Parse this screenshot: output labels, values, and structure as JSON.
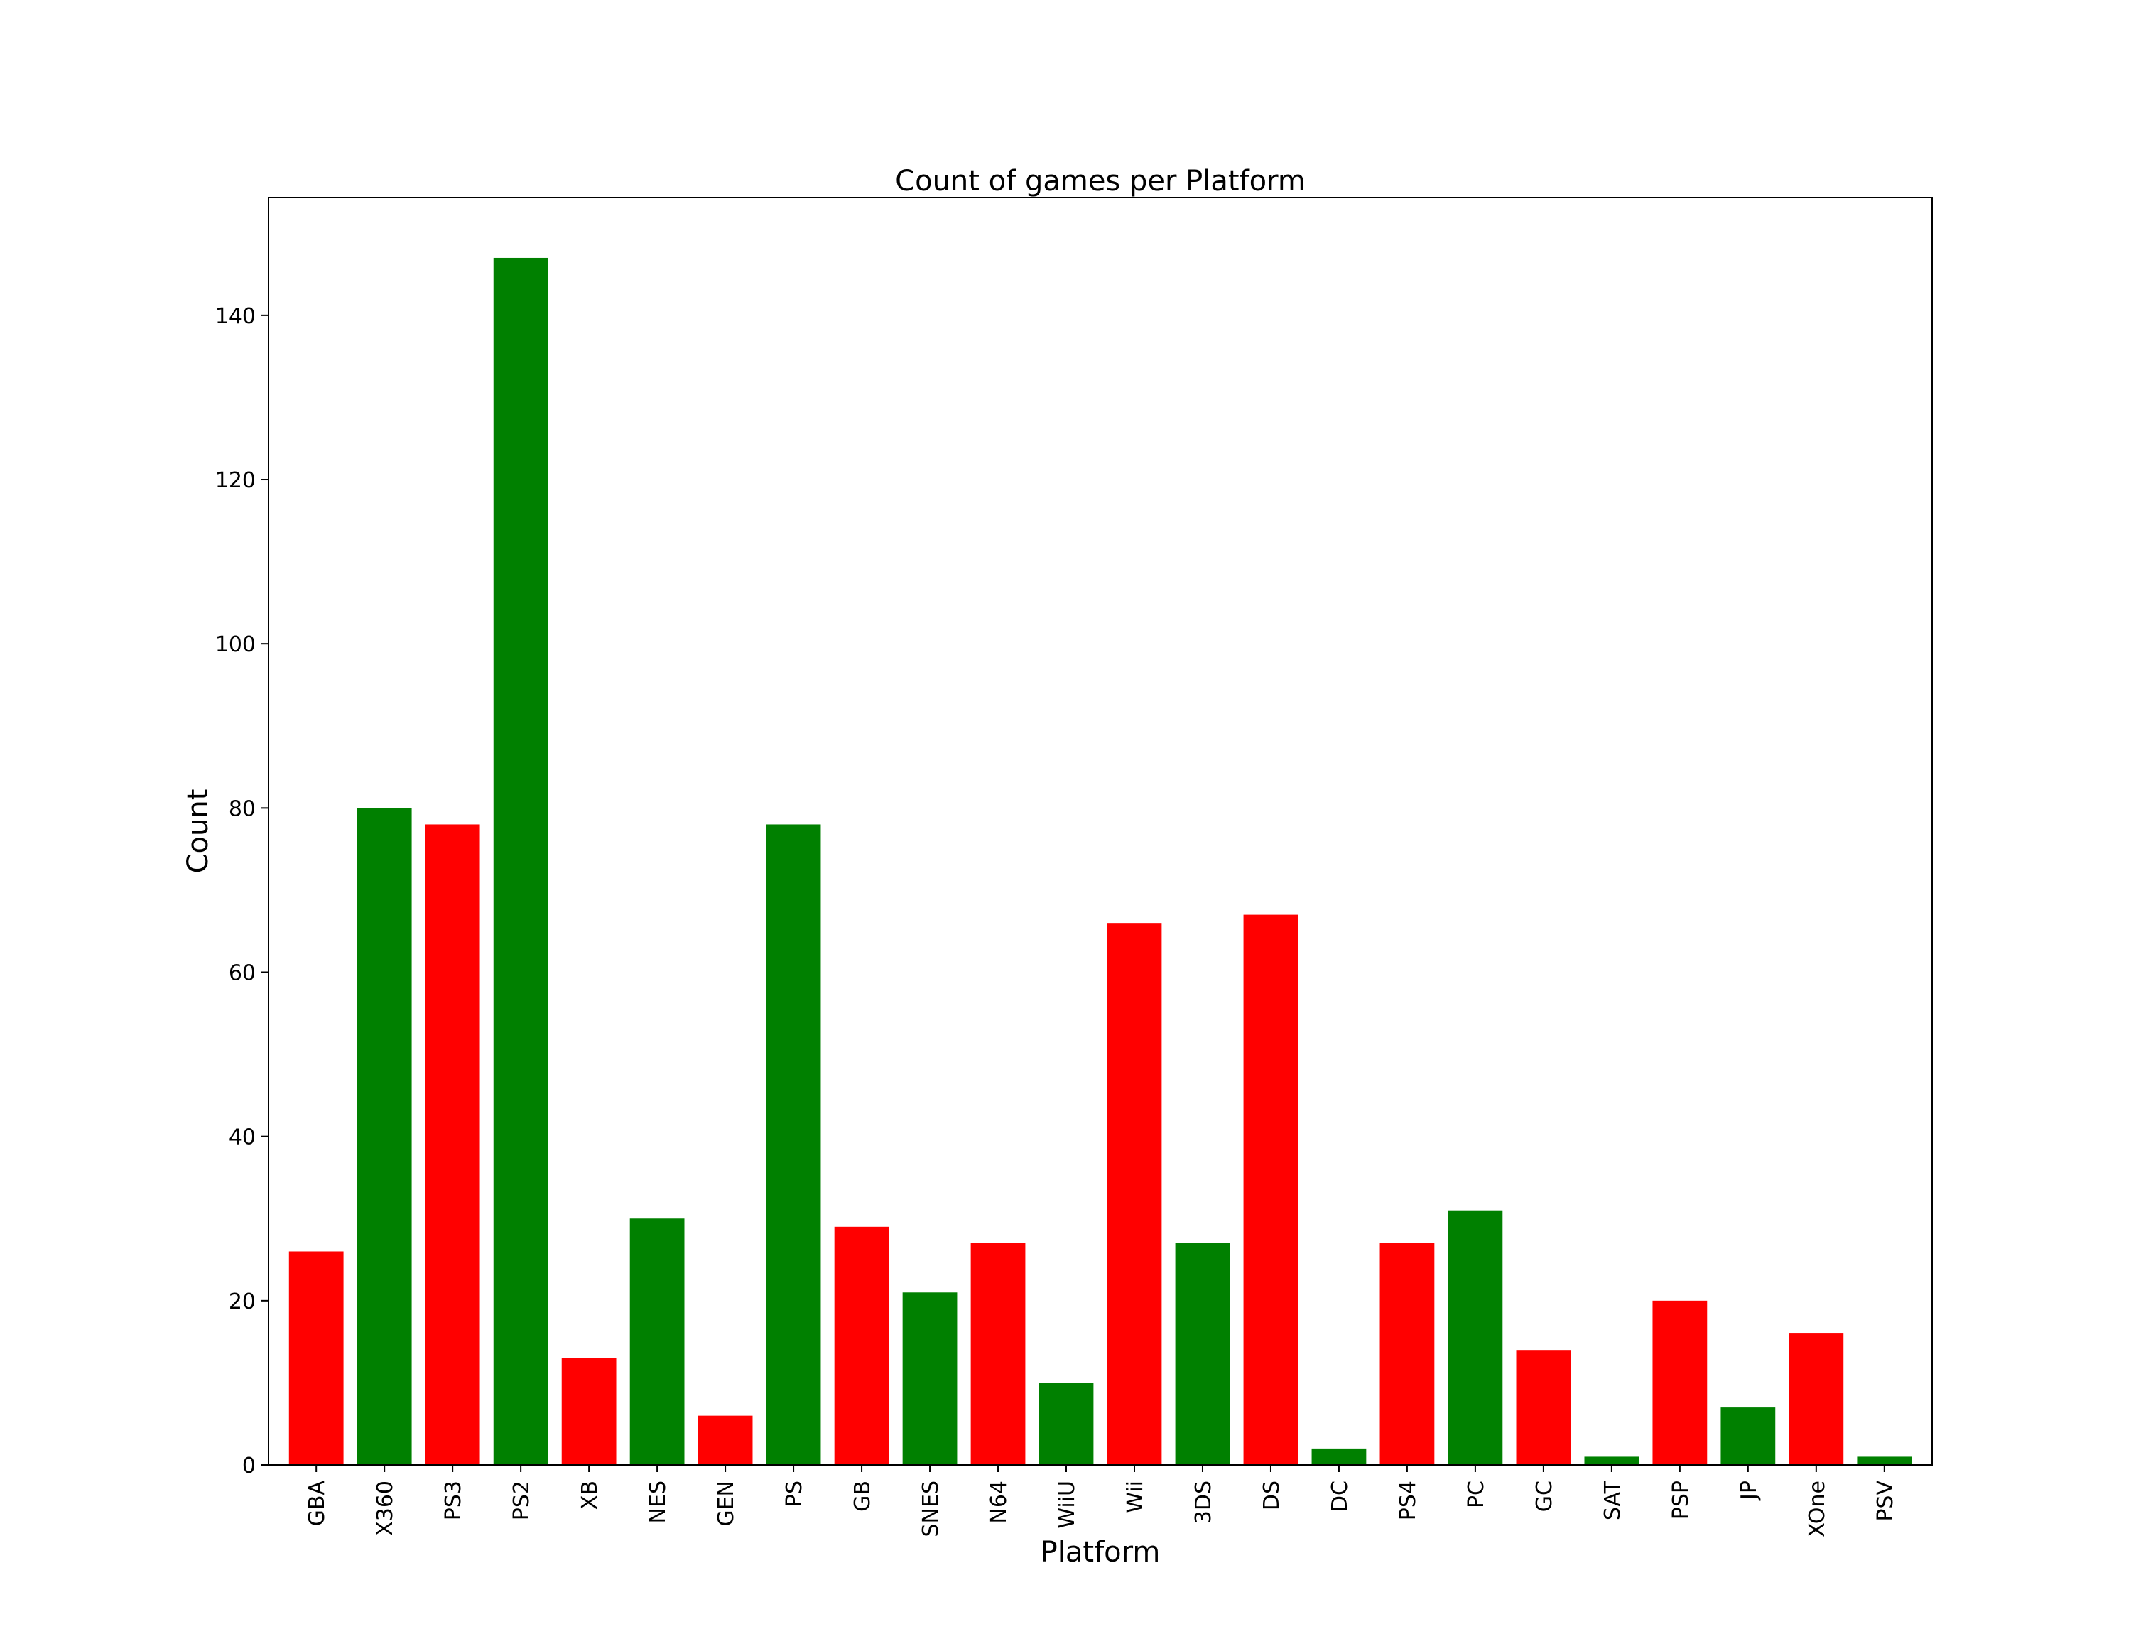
{
  "chart_data": {
    "type": "bar",
    "title": "Count of games per Platform",
    "xlabel": "Platform",
    "ylabel": "Count",
    "categories": [
      "GBA",
      "X360",
      "PS3",
      "PS2",
      "XB",
      "NES",
      "GEN",
      "PS",
      "GB",
      "SNES",
      "N64",
      "WiiU",
      "Wii",
      "3DS",
      "DS",
      "DC",
      "PS4",
      "PC",
      "GC",
      "SAT",
      "PSP",
      "JP",
      "XOne",
      "PSV"
    ],
    "values": [
      26,
      80,
      78,
      147,
      13,
      30,
      6,
      78,
      29,
      21,
      27,
      10,
      66,
      27,
      67,
      2,
      27,
      31,
      14,
      1,
      20,
      7,
      16,
      1
    ],
    "bar_colors": [
      "#ff0000",
      "#008000",
      "#ff0000",
      "#008000",
      "#ff0000",
      "#008000",
      "#ff0000",
      "#008000",
      "#ff0000",
      "#008000",
      "#ff0000",
      "#008000",
      "#ff0000",
      "#008000",
      "#ff0000",
      "#008000",
      "#ff0000",
      "#008000",
      "#ff0000",
      "#008000",
      "#ff0000",
      "#008000",
      "#ff0000",
      "#008000"
    ],
    "ylim": [
      0,
      154.35
    ],
    "yticks": [
      0,
      20,
      40,
      60,
      80,
      100,
      120,
      140
    ],
    "grid": false
  }
}
